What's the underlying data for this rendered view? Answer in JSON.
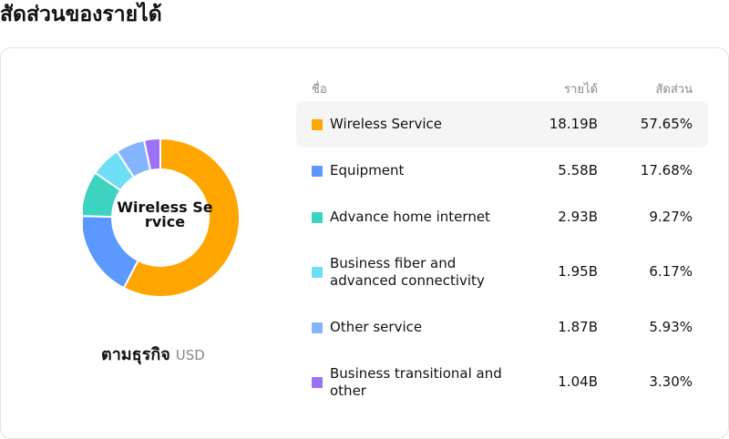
{
  "page": {
    "title": "สัดส่วนของรายได้"
  },
  "table": {
    "headers": {
      "name": "ชื่อ",
      "revenue": "รายได้",
      "share": "สัดส่วน"
    }
  },
  "caption": {
    "main": "ตามธุรกิจ",
    "unit": "USD"
  },
  "donut": {
    "center_label": "Wireless Service"
  },
  "rows": [
    {
      "name": "Wireless Service",
      "revenue": "18.19B",
      "share": "57.65%",
      "color": "#FFA500",
      "active": true
    },
    {
      "name": "Equipment",
      "revenue": "5.58B",
      "share": "17.68%",
      "color": "#5B98FF"
    },
    {
      "name": "Advance home internet",
      "revenue": "2.93B",
      "share": "9.27%",
      "color": "#3CD4C0"
    },
    {
      "name": "Business fiber and advanced connectivity",
      "revenue": "1.95B",
      "share": "6.17%",
      "color": "#6EDDF6"
    },
    {
      "name": "Other service",
      "revenue": "1.87B",
      "share": "5.93%",
      "color": "#85B4FF"
    },
    {
      "name": "Business transitional and other",
      "revenue": "1.04B",
      "share": "3.30%",
      "color": "#9B72F5"
    }
  ],
  "chart_data": {
    "type": "pie",
    "title": "สัดส่วนของรายได้",
    "categories": [
      "Wireless Service",
      "Equipment",
      "Advance home internet",
      "Business fiber and advanced connectivity",
      "Other service",
      "Business transitional and other"
    ],
    "values": [
      18.19,
      5.58,
      2.93,
      1.95,
      1.87,
      1.04
    ],
    "percentages": [
      57.65,
      17.68,
      9.27,
      6.17,
      5.93,
      3.3
    ],
    "unit": "USD",
    "style": "donut"
  }
}
